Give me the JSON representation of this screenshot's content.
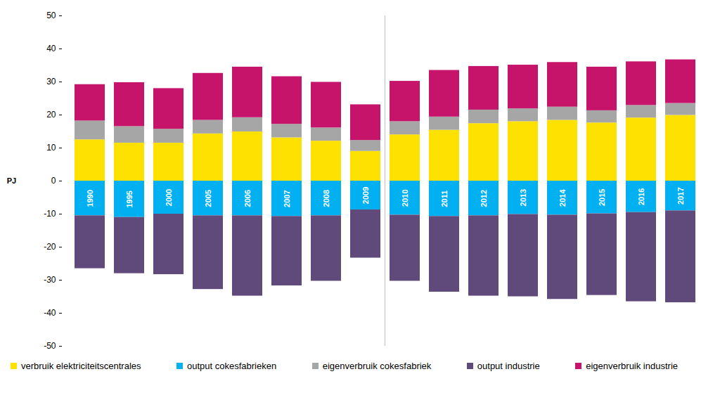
{
  "chart_data": {
    "type": "bar",
    "stacked": true,
    "y_label": "PJ",
    "categories": [
      "1990",
      "1995",
      "2000",
      "2005",
      "2006",
      "2007",
      "2008",
      "2009",
      "2010",
      "2011",
      "2012",
      "2013",
      "2014",
      "2015",
      "2016",
      "2017"
    ],
    "series": [
      {
        "name": "verbruik elektriciteitscentrales",
        "color": "#FFE100",
        "values": [
          12.5,
          11.5,
          11.5,
          14.3,
          14.9,
          13.1,
          12.1,
          9.0,
          14.0,
          15.4,
          17.4,
          18.0,
          18.4,
          17.6,
          19.1,
          19.9
        ]
      },
      {
        "name": "output cokesfabrieken",
        "color": "#00B0F0",
        "values": [
          -10.5,
          -11.0,
          -10.0,
          -10.5,
          -10.5,
          -10.7,
          -10.5,
          -8.7,
          -10.3,
          -10.7,
          -10.5,
          -10.1,
          -10.3,
          -9.9,
          -9.5,
          -9.0
        ]
      },
      {
        "name": "eigenverbruik cokesfabriek",
        "color": "#A6A6A6",
        "values": [
          5.7,
          5.0,
          4.2,
          4.1,
          4.3,
          4.1,
          4.0,
          3.3,
          4.0,
          4.0,
          4.1,
          3.9,
          4.0,
          3.7,
          3.8,
          3.6
        ]
      },
      {
        "name": "output industrie",
        "color": "#604A7B",
        "values": [
          -16.0,
          -17.0,
          -18.3,
          -22.3,
          -24.3,
          -21.0,
          -19.8,
          -14.6,
          -20.0,
          -22.9,
          -24.3,
          -24.9,
          -25.5,
          -24.7,
          -27.0,
          -27.8
        ]
      },
      {
        "name": "eigenverbruik industrie",
        "color": "#C7146B",
        "values": [
          11.0,
          13.3,
          12.3,
          14.2,
          15.3,
          14.4,
          13.8,
          10.8,
          12.2,
          14.1,
          13.2,
          13.2,
          13.5,
          13.2,
          13.2,
          13.2
        ]
      }
    ],
    "ylim": [
      -50,
      50
    ],
    "yticks": [
      -50,
      -40,
      -30,
      -20,
      -10,
      0,
      10,
      20,
      30,
      40,
      50
    ],
    "grid": false,
    "legend": "bottom"
  }
}
